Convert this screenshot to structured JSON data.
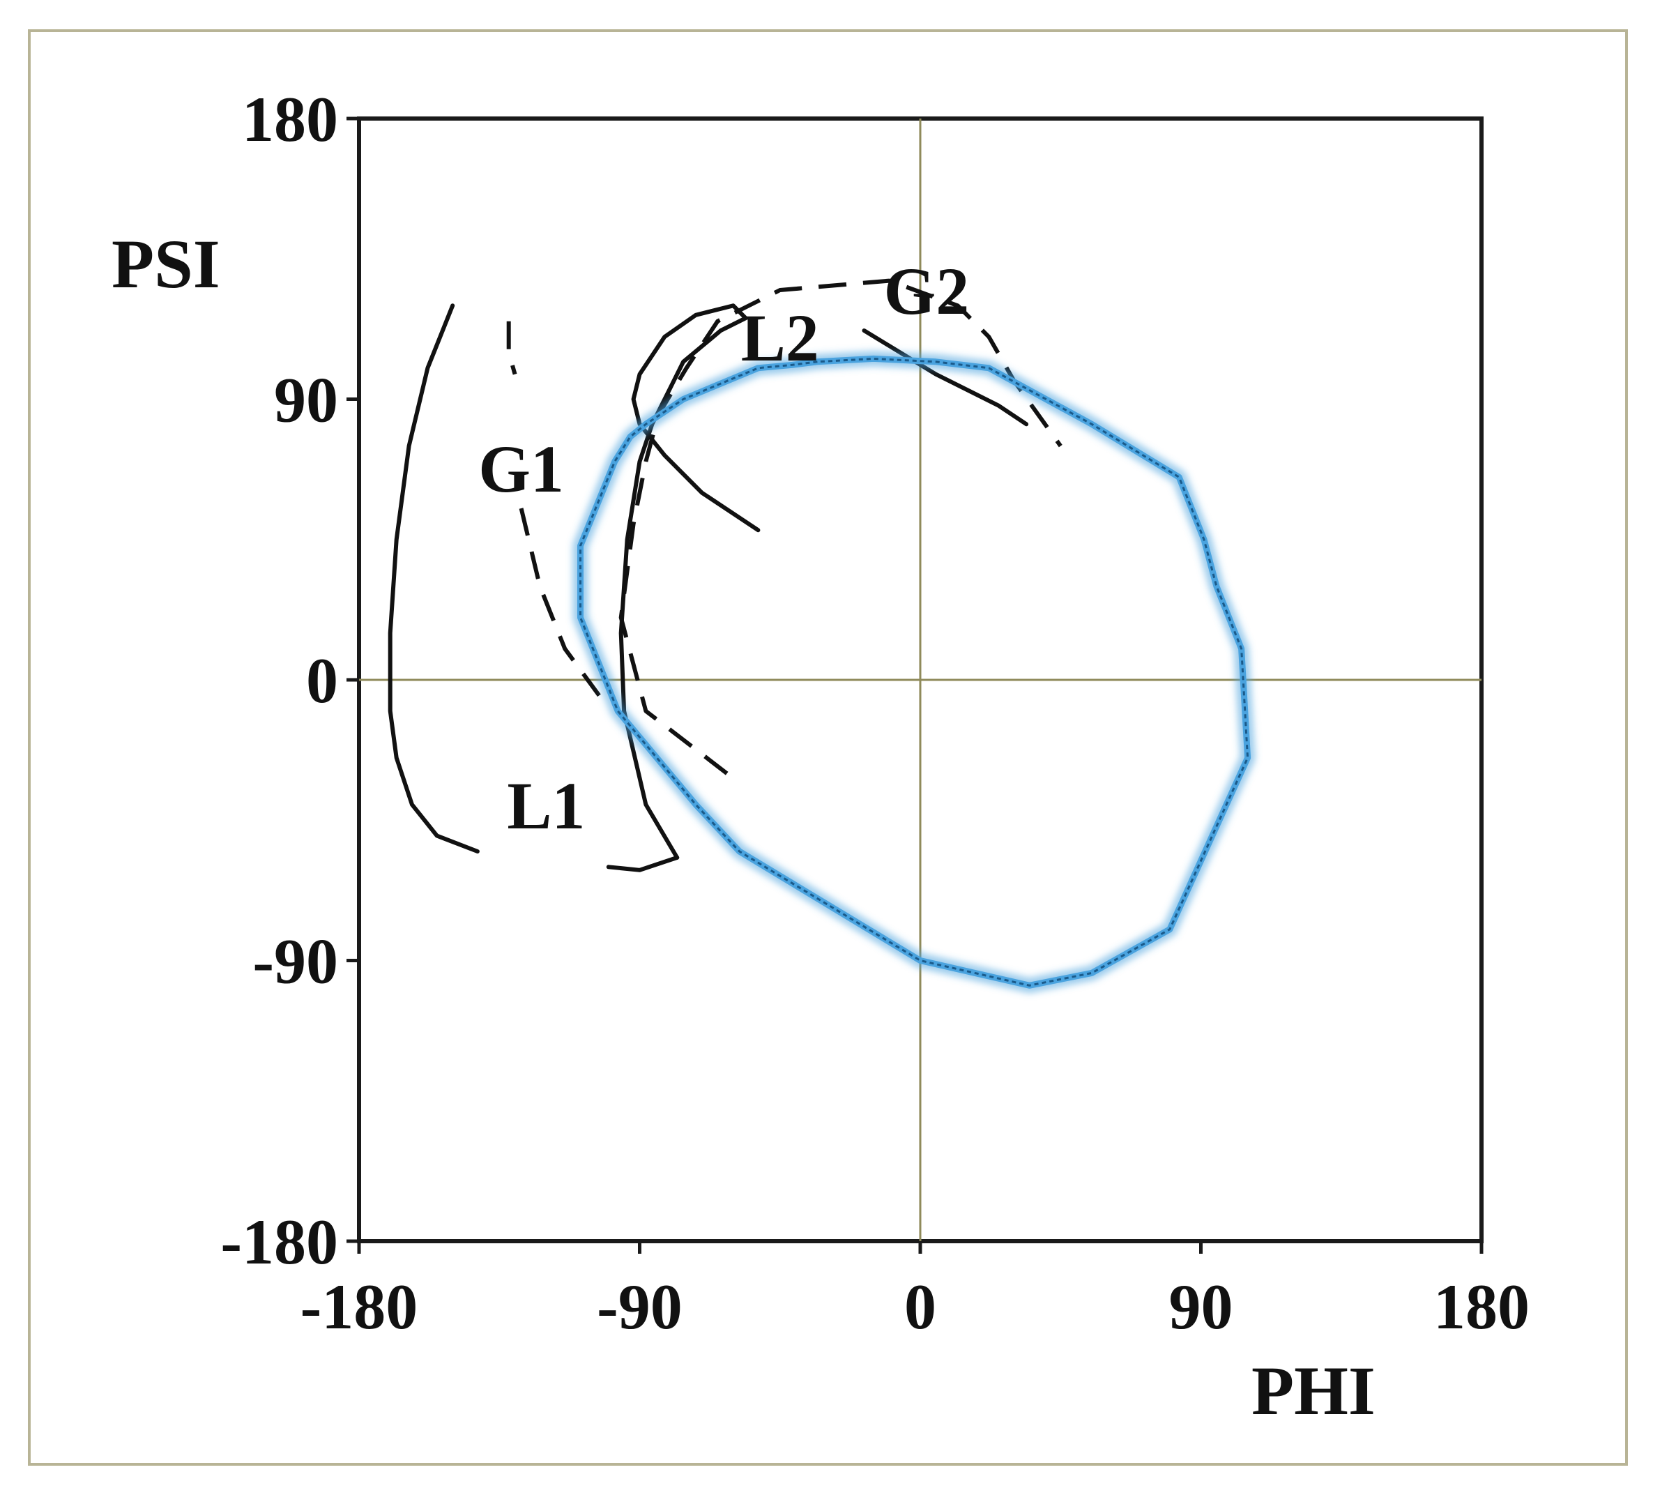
{
  "chart_data": {
    "type": "line",
    "title": "",
    "xlabel": "PHI",
    "ylabel": "PSI",
    "xlim": [
      -180,
      180
    ],
    "ylim": [
      -180,
      180
    ],
    "xticks": [
      -180,
      -90,
      0,
      90,
      180
    ],
    "yticks": [
      180,
      90,
      0,
      -90,
      -180
    ],
    "zero_lines": true,
    "colors": {
      "frame": "#b8b496",
      "axes": "#1a1a1a",
      "zero_line": "#8f8a5a",
      "curve": "#111111",
      "ellipse_glow": "#4aa3df",
      "ellipse_core": "#1a5a8a"
    },
    "series": [
      {
        "name": "L1",
        "style": "solid",
        "x": [
          -150,
          -158,
          -164,
          -168,
          -170,
          -170,
          -168,
          -163,
          -155,
          -142
        ],
        "y": [
          120,
          100,
          75,
          45,
          15,
          -10,
          -25,
          -40,
          -50,
          -55
        ]
      },
      {
        "name": "L1-tail",
        "style": "solid",
        "x": [
          -100,
          -90,
          -78
        ],
        "y": [
          -60,
          -61,
          -57
        ]
      },
      {
        "name": "L2",
        "style": "solid",
        "x": [
          -78,
          -88,
          -95,
          -96,
          -94,
          -90,
          -86,
          -81,
          -76,
          -64,
          -56,
          -60,
          -72,
          -82,
          -90,
          -92,
          -90,
          -82,
          -70,
          -52
        ],
        "y": [
          -57,
          -40,
          -10,
          15,
          45,
          70,
          82,
          92,
          102,
          112,
          116,
          120,
          117,
          110,
          98,
          90,
          82,
          72,
          60,
          48
        ]
      },
      {
        "name": "L2-upper",
        "style": "solid",
        "x": [
          -18,
          5,
          25,
          34
        ],
        "y": [
          112,
          98,
          88,
          82
        ]
      },
      {
        "name": "G1",
        "style": "dashed",
        "x": [
          -132,
          -132,
          -130
        ],
        "y": [
          115,
          105,
          98
        ]
      },
      {
        "name": "G1-lower",
        "style": "dashed",
        "x": [
          -128,
          -122,
          -114,
          -103
        ],
        "y": [
          55,
          30,
          10,
          -5
        ]
      },
      {
        "name": "G2",
        "style": "dashed",
        "x": [
          -62,
          -88,
          -96,
          -92,
          -88,
          -84,
          -75,
          -65,
          -45,
          -10,
          12,
          22,
          30,
          45
        ],
        "y": [
          -30,
          -10,
          20,
          50,
          70,
          85,
          100,
          115,
          125,
          128,
          120,
          110,
          96,
          75
        ]
      },
      {
        "name": "ellipse",
        "style": "highlight",
        "x": [
          -33,
          -41,
          -52,
          -76,
          -88,
          -93,
          -98,
          -109,
          -109,
          -97,
          -72,
          -58,
          0,
          35,
          55,
          80,
          105,
          103,
          95,
          91,
          83,
          55,
          22,
          5,
          -15,
          -33
        ],
        "y": [
          102,
          101,
          100,
          90,
          82,
          78,
          70,
          43,
          20,
          -10,
          -40,
          -55,
          -90,
          -98,
          -94,
          -80,
          -25,
          10,
          30,
          45,
          65,
          82,
          100,
          102,
          103,
          102
        ]
      }
    ],
    "annotations": [
      {
        "text": "L1",
        "x": -120,
        "y": -40
      },
      {
        "text": "L2",
        "x": -45,
        "y": 110
      },
      {
        "text": "G1",
        "x": -128,
        "y": 68
      },
      {
        "text": "G2",
        "x": 2,
        "y": 125
      }
    ]
  }
}
